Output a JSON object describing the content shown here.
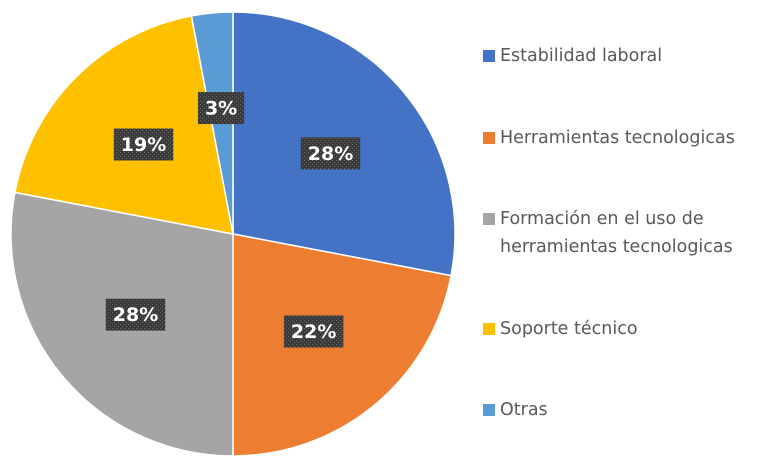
{
  "chart_data": {
    "type": "pie",
    "categories": [
      "Estabilidad laboral",
      "Herramientas tecnologicas",
      "Formación en el uso de herramientas tecnologicas",
      "Soporte técnico",
      "Otras"
    ],
    "values": [
      28,
      22,
      28,
      19,
      3
    ],
    "value_labels": [
      "28%",
      "22%",
      "28%",
      "19%",
      "3%"
    ],
    "colors": [
      "#4472c4",
      "#ed7d31",
      "#a5a5a5",
      "#ffc000",
      "#5b9bd5"
    ],
    "legend": "right"
  }
}
